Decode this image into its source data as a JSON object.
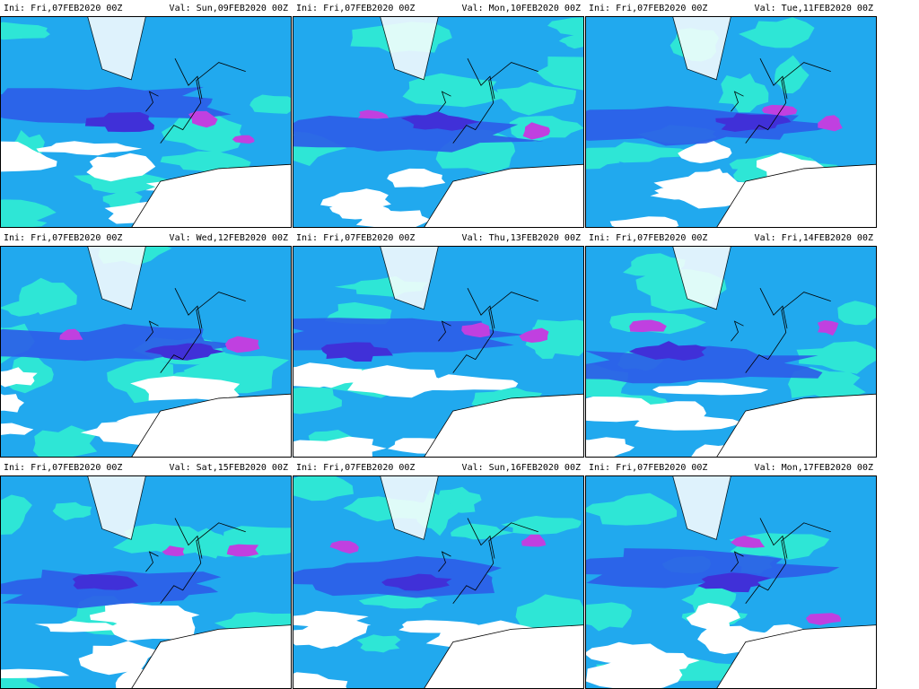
{
  "panels": [
    {
      "ini": "Ini: Fri,07FEB2020 00Z",
      "val": "Val: Sun,09FEB2020 00Z"
    },
    {
      "ini": "Ini: Fri,07FEB2020 00Z",
      "val": "Val: Mon,10FEB2020 00Z"
    },
    {
      "ini": "Ini: Fri,07FEB2020 00Z",
      "val": "Val: Tue,11FEB2020 00Z"
    },
    {
      "ini": "Ini: Fri,07FEB2020 00Z",
      "val": "Val: Wed,12FEB2020 00Z"
    },
    {
      "ini": "Ini: Fri,07FEB2020 00Z",
      "val": "Val: Thu,13FEB2020 00Z"
    },
    {
      "ini": "Ini: Fri,07FEB2020 00Z",
      "val": "Val: Fri,14FEB2020 00Z"
    },
    {
      "ini": "Ini: Fri,07FEB2020 00Z",
      "val": "Val: Sat,15FEB2020 00Z"
    },
    {
      "ini": "Ini: Fri,07FEB2020 00Z",
      "val": "Val: Sun,16FEB2020 00Z"
    },
    {
      "ini": "Ini: Fri,07FEB2020 00Z",
      "val": "Val: Mon,17FEB2020 00Z"
    }
  ]
}
